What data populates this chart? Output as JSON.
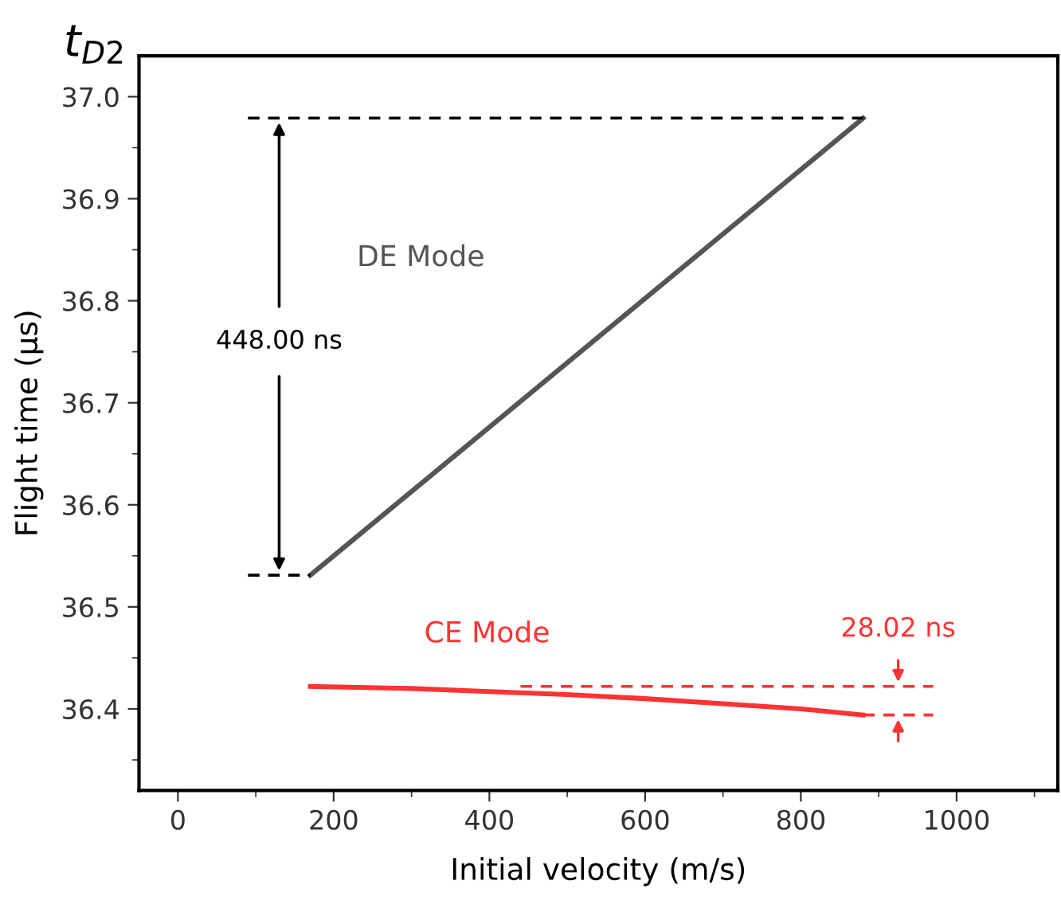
{
  "chart_data": {
    "type": "line",
    "title": "t$_{D2}$",
    "xlabel": "Initial velocity (m/s)",
    "ylabel": "Flight time (µs)",
    "xlim": [
      -50,
      1130
    ],
    "ylim": [
      36.32,
      37.04
    ],
    "xticks": [
      0,
      200,
      400,
      600,
      800,
      1000
    ],
    "yticks": [
      36.4,
      36.5,
      36.6,
      36.7,
      36.8,
      36.9,
      {
        "value": 37.0,
        "label": "37.0"
      }
    ],
    "grid": false,
    "marker": "none",
    "series": [
      {
        "name": "DE Mode",
        "color": "#555555",
        "x": [
          170,
          880
        ],
        "values": [
          36.531,
          36.979
        ]
      },
      {
        "name": "CE Mode",
        "color": "#ff3333",
        "x": [
          170,
          300,
          400,
          500,
          600,
          700,
          800,
          880
        ],
        "values": [
          36.422,
          36.42,
          36.417,
          36.414,
          36.41,
          36.405,
          36.4,
          36.394
        ]
      },
      {
        "type": "line",
        "line_style": "dashed",
        "color": "#000000",
        "x": [
          90,
          880
        ],
        "values": [
          36.979,
          36.979
        ]
      },
      {
        "type": "line",
        "line_style": "dashed",
        "color": "#000000",
        "x": [
          90,
          170
        ],
        "values": [
          36.531,
          36.531
        ]
      },
      {
        "type": "line",
        "line_style": "dashed",
        "color": "#ff3333",
        "x": [
          440,
          970
        ],
        "values": [
          36.422,
          36.422
        ]
      },
      {
        "type": "line",
        "line_style": "dashed",
        "color": "#ff3333",
        "x": [
          880,
          970
        ],
        "values": [
          36.394,
          36.394
        ]
      }
    ],
    "annotations": [
      "448.00 ns",
      "28.02 ns"
    ]
  }
}
